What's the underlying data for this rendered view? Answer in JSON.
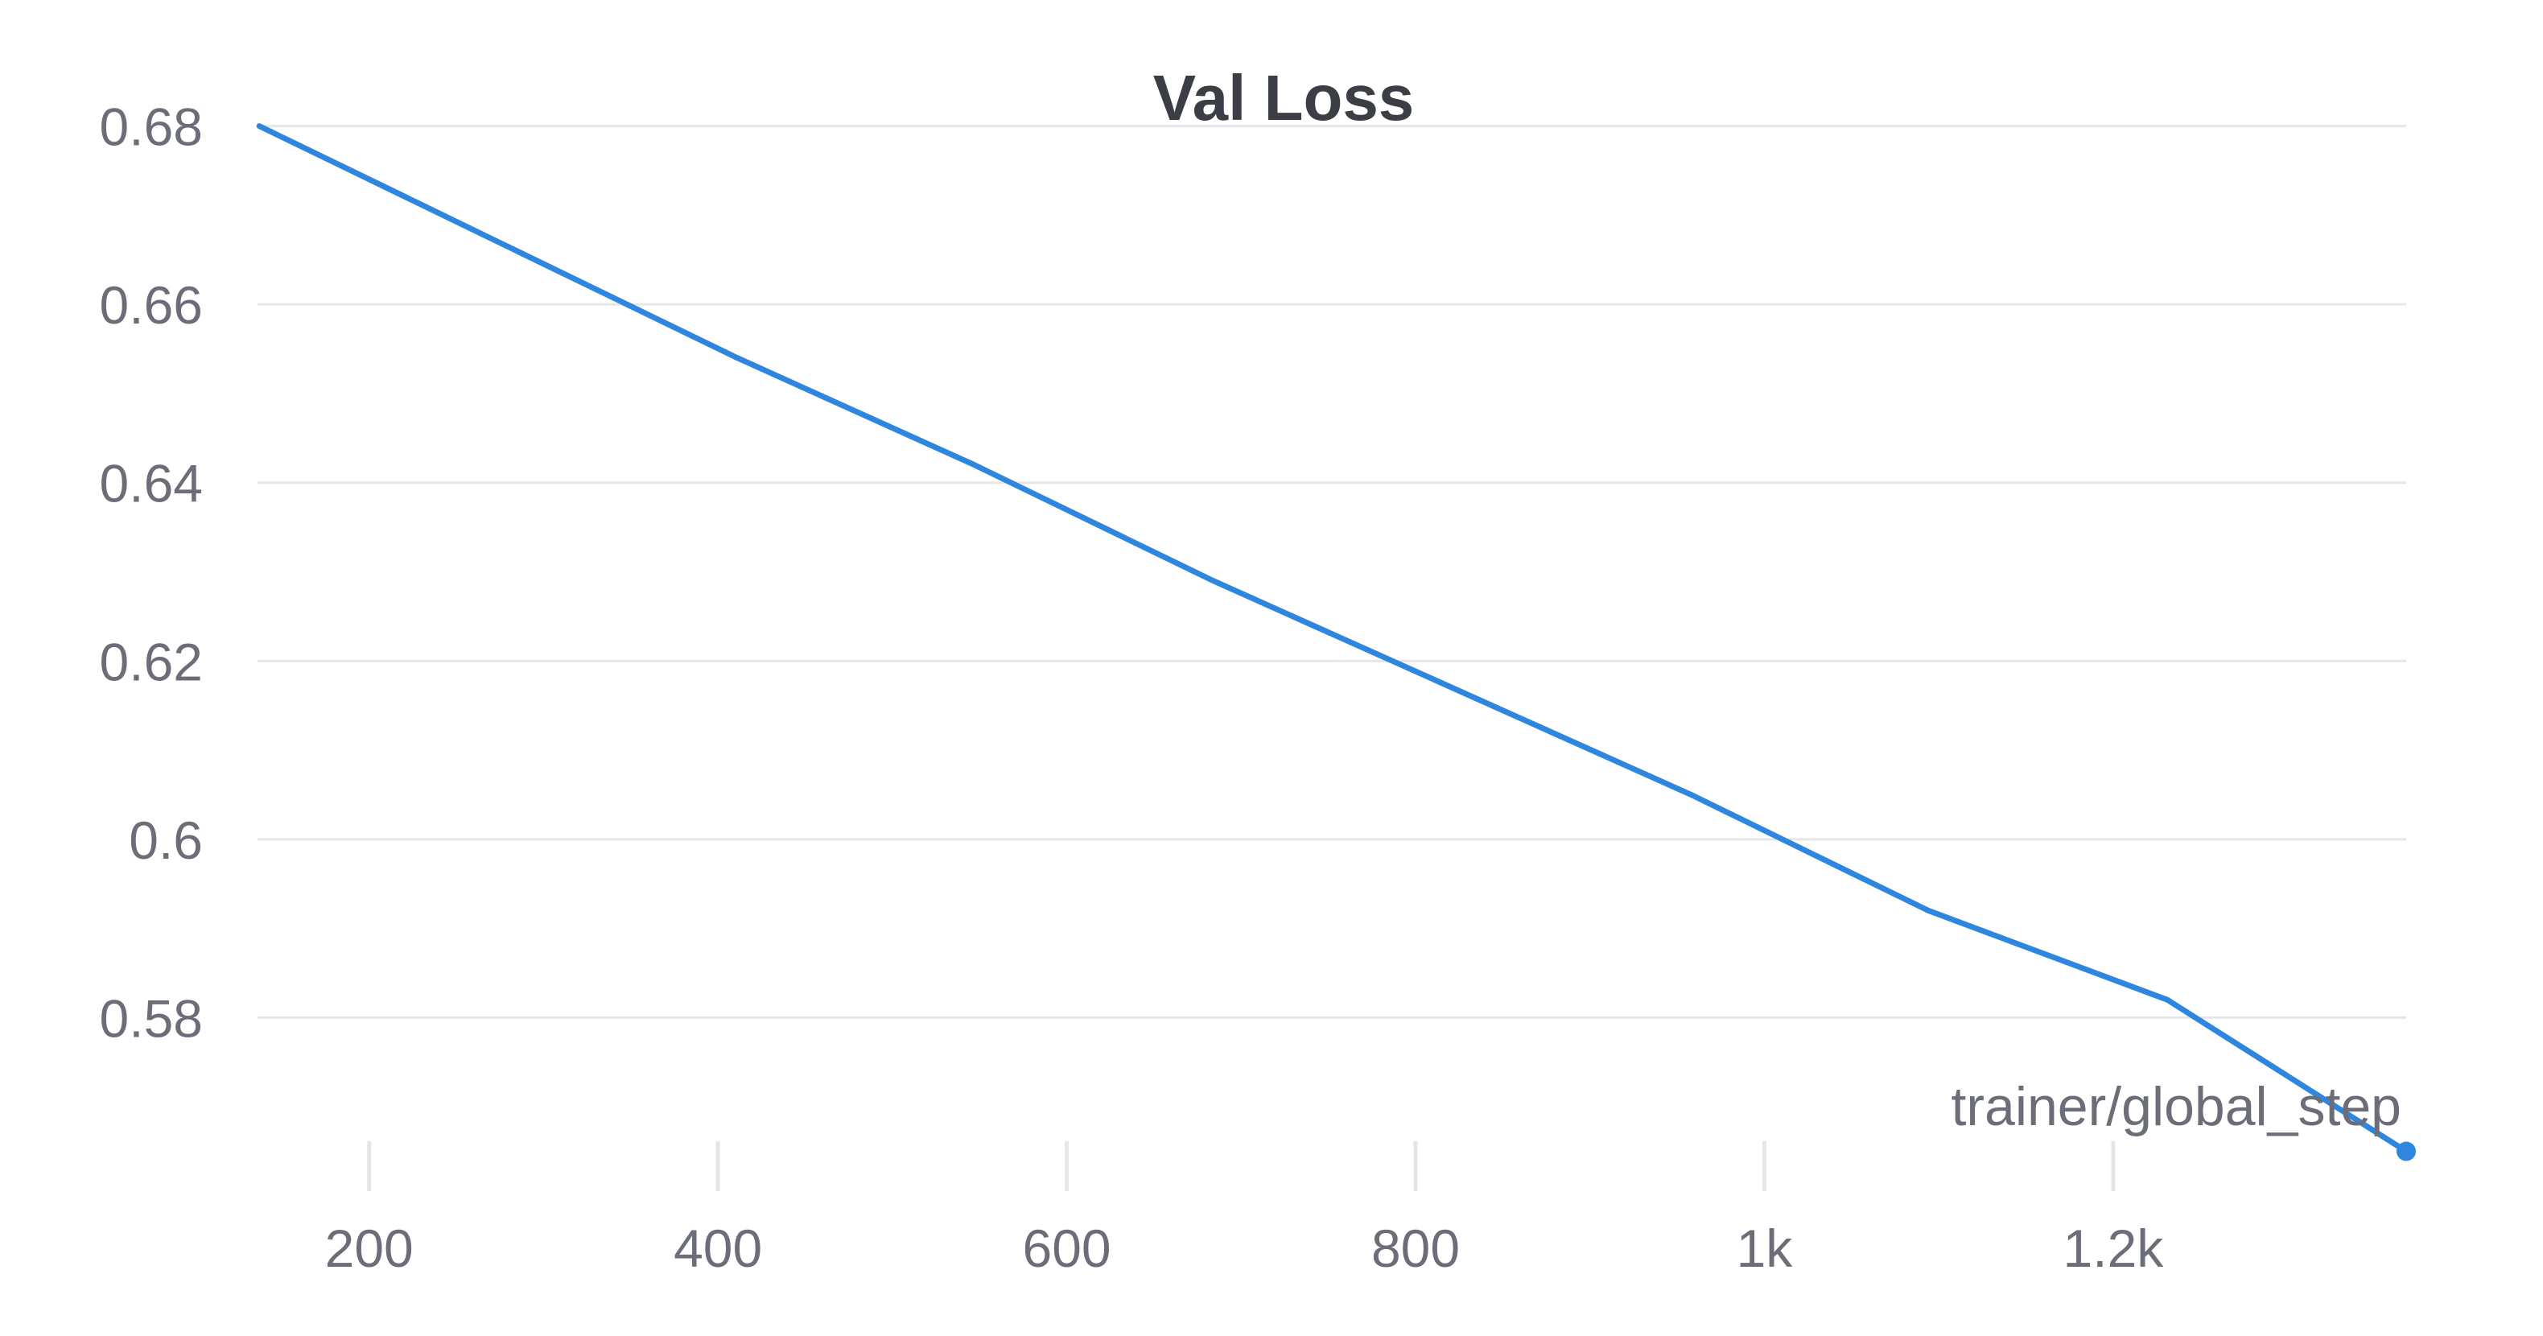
{
  "chart_data": {
    "type": "line",
    "title": "Val Loss",
    "xlabel": "trainer/global_step",
    "ylabel": "",
    "xlim": [
      136,
      1368
    ],
    "ylim": [
      0.5655,
      0.6815
    ],
    "x_ticks": [
      {
        "value": 200,
        "label": "200"
      },
      {
        "value": 400,
        "label": "400"
      },
      {
        "value": 600,
        "label": "600"
      },
      {
        "value": 800,
        "label": "800"
      },
      {
        "value": 1000,
        "label": "1k"
      },
      {
        "value": 1200,
        "label": "1.2k"
      }
    ],
    "y_ticks": [
      {
        "value": 0.58,
        "label": "0.58"
      },
      {
        "value": 0.6,
        "label": "0.6"
      },
      {
        "value": 0.62,
        "label": "0.62"
      },
      {
        "value": 0.64,
        "label": "0.64"
      },
      {
        "value": 0.66,
        "label": "0.66"
      },
      {
        "value": 0.68,
        "label": "0.68"
      }
    ],
    "grid": "horizontal",
    "series": [
      {
        "color": "#2e86de",
        "x": [
          137,
          274,
          411,
          547,
          684,
          821,
          958,
          1094,
          1231,
          1368
        ],
        "y": [
          0.68,
          0.667,
          0.654,
          0.642,
          0.629,
          0.617,
          0.605,
          0.592,
          0.582,
          0.565
        ]
      }
    ],
    "end_marker": true
  },
  "colors": {
    "line": "#2e86de",
    "grid": "#e6e6e9",
    "tick_text": "#6b6e78",
    "title": "#3b3e45"
  }
}
